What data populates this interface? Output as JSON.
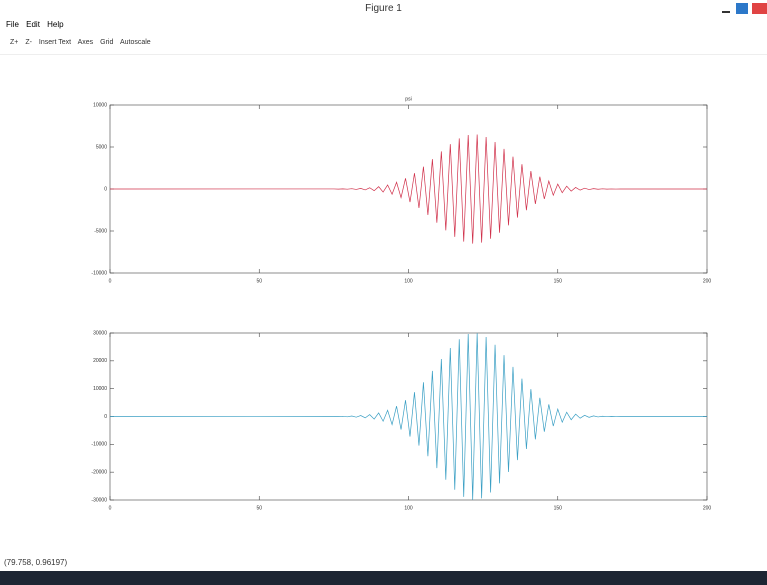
{
  "window": {
    "title": "Figure 1",
    "menu": [
      "File",
      "Edit",
      "Help"
    ],
    "toolbar": [
      "Z+",
      "Z-",
      "Insert Text",
      "Axes",
      "Grid",
      "Autoscale"
    ],
    "status": "(79.758, 0.96197)"
  },
  "chart_data": [
    {
      "type": "line",
      "title": "psi",
      "grid": false,
      "xlim": [
        0,
        200
      ],
      "xticks": [
        0,
        50,
        100,
        150,
        200
      ],
      "ylim": [
        -10000,
        10000
      ],
      "yticks": [
        -10000,
        -5000,
        0,
        5000,
        10000
      ],
      "x": [
        0,
        75,
        76.5,
        78,
        79.5,
        81,
        82.5,
        84,
        85.5,
        87,
        88.5,
        90,
        91.5,
        93,
        94.5,
        96,
        97.5,
        99,
        100.5,
        102,
        103.5,
        105,
        106.5,
        108,
        109.5,
        111,
        112.5,
        114,
        115.5,
        117,
        118.5,
        120,
        121.5,
        123,
        124.5,
        126,
        127.5,
        129,
        130.5,
        132,
        133.5,
        135,
        136.5,
        138,
        139.5,
        141,
        142.5,
        144,
        145.5,
        147,
        148.5,
        150,
        151.5,
        153,
        154.5,
        156,
        157.5,
        159,
        160.5,
        162,
        163.5,
        165,
        166.5,
        168,
        169.5,
        171,
        172.5,
        174,
        200
      ],
      "series": [
        {
          "color": "#d0304a",
          "values": [
            0,
            7,
            -11,
            16,
            -25,
            36,
            -53,
            75,
            -107,
            148,
            -203,
            276,
            -368,
            485,
            -630,
            807,
            -1019,
            1270,
            -1561,
            1891,
            -2261,
            2664,
            -3095,
            3550,
            -4014,
            4475,
            -4919,
            5334,
            -5705,
            6018,
            -6259,
            6420,
            -6495,
            6480,
            -6376,
            6187,
            -5920,
            5589,
            -5201,
            4772,
            -4323,
            3858,
            -3398,
            2950,
            -2526,
            2133,
            -1777,
            1459,
            -1182,
            944,
            -744,
            578,
            -443,
            335,
            -250,
            183,
            -133,
            95,
            -67,
            47,
            -32,
            21,
            -14,
            10,
            -6,
            4,
            -3,
            1,
            0
          ]
        }
      ]
    },
    {
      "type": "line",
      "grid": false,
      "xlim": [
        0,
        200
      ],
      "xticks": [
        0,
        50,
        100,
        150,
        200
      ],
      "ylim": [
        -30000,
        30000
      ],
      "yticks": [
        -30000,
        -20000,
        -10000,
        0,
        10000,
        20000,
        30000
      ],
      "x": [
        0,
        75,
        76.5,
        78,
        79.5,
        81,
        82.5,
        84,
        85.5,
        87,
        88.5,
        90,
        91.5,
        93,
        94.5,
        96,
        97.5,
        99,
        100.5,
        102,
        103.5,
        105,
        106.5,
        108,
        109.5,
        111,
        112.5,
        114,
        115.5,
        117,
        118.5,
        120,
        121.5,
        123,
        124.5,
        126,
        127.5,
        129,
        130.5,
        132,
        133.5,
        135,
        136.5,
        138,
        139.5,
        141,
        142.5,
        144,
        145.5,
        147,
        148.5,
        150,
        151.5,
        153,
        154.5,
        156,
        157.5,
        159,
        160.5,
        162,
        163.5,
        165,
        166.5,
        168,
        169.5,
        171,
        172.5,
        174,
        200
      ],
      "series": [
        {
          "color": "#3a9fc4",
          "values": [
            0,
            33,
            -51,
            75,
            -114,
            168,
            -243,
            348,
            -492,
            684,
            -939,
            1272,
            -1698,
            2238,
            -2907,
            3726,
            -4704,
            5862,
            -7203,
            8727,
            -10434,
            12294,
            -14286,
            16383,
            -18525,
            20652,
            -22704,
            24618,
            -26331,
            27774,
            -28887,
            29631,
            -29976,
            29907,
            -29427,
            28554,
            -27324,
            25794,
            -24003,
            22026,
            -19950,
            17808,
            -15681,
            13614,
            -11658,
            9846,
            -8202,
            6735,
            -5454,
            4359,
            -3435,
            2667,
            -2043,
            1545,
            -1152,
            846,
            -612,
            438,
            -309,
            216,
            -147,
            99,
            -66,
            45,
            -27,
            18,
            -12,
            6,
            0
          ]
        }
      ]
    }
  ]
}
